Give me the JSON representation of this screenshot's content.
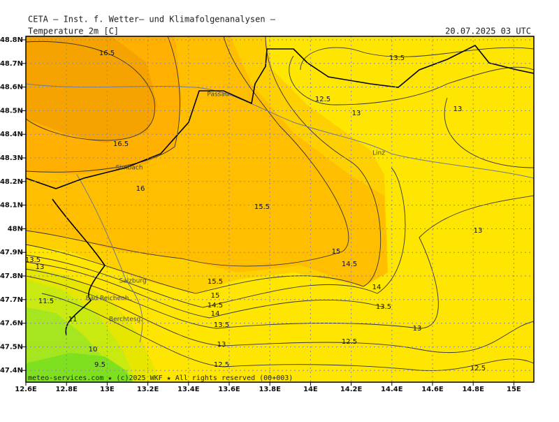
{
  "header": {
    "title": "CETA — Inst. f. Wetter— und Klimafolgenanalysen —",
    "variable": "Temperature_2m [C]",
    "valid_time": "20.07.2025 03 UTC",
    "footer": "meteo-services.com ★ (c)2025 WKF ★ All rights reserved (00+003)"
  },
  "map": {
    "lon_ticks": [
      {
        "value": 12.6,
        "label": "12.6E"
      },
      {
        "value": 12.8,
        "label": "12.8E"
      },
      {
        "value": 13,
        "label": "13E"
      },
      {
        "value": 13.2,
        "label": "13.2E"
      },
      {
        "value": 13.4,
        "label": "13.4E"
      },
      {
        "value": 13.6,
        "label": "13.6E"
      },
      {
        "value": 13.8,
        "label": "13.8E"
      },
      {
        "value": 14,
        "label": "14E"
      },
      {
        "value": 14.2,
        "label": "14.2E"
      },
      {
        "value": 14.4,
        "label": "14.4E"
      },
      {
        "value": 14.6,
        "label": "14.6E"
      },
      {
        "value": 14.8,
        "label": "14.8E"
      },
      {
        "value": 15,
        "label": "15E"
      }
    ],
    "lat_ticks": [
      {
        "value": 48.8,
        "label": "48.8N"
      },
      {
        "value": 48.7,
        "label": "48.7N"
      },
      {
        "value": 48.6,
        "label": "48.6N"
      },
      {
        "value": 48.5,
        "label": "48.5N"
      },
      {
        "value": 48.4,
        "label": "48.4N"
      },
      {
        "value": 48.3,
        "label": "48.3N"
      },
      {
        "value": 48.2,
        "label": "48.2N"
      },
      {
        "value": 48.1,
        "label": "48.1N"
      },
      {
        "value": 48,
        "label": "48N"
      },
      {
        "value": 47.9,
        "label": "47.9N"
      },
      {
        "value": 47.8,
        "label": "47.8N"
      },
      {
        "value": 47.7,
        "label": "47.7N"
      },
      {
        "value": 47.6,
        "label": "47.6N"
      },
      {
        "value": 47.5,
        "label": "47.5N"
      },
      {
        "value": 47.4,
        "label": "47.4N"
      }
    ],
    "contour_labels": [
      "16.5",
      "16.5",
      "16",
      "15.5",
      "15",
      "14.5",
      "14",
      "13.5",
      "13",
      "12.5",
      "12.5",
      "13",
      "13.5",
      "13",
      "13",
      "12.5",
      "13.5",
      "13",
      "11.5",
      "11",
      "10",
      "9.5",
      "15.5",
      "15",
      "14.5",
      "14",
      "13.5",
      "13",
      "12.5"
    ],
    "places": [
      "Passau",
      "Linz",
      "Simbach",
      "Salzburg",
      "Bad Reichenh.",
      "Berchtesg."
    ]
  }
}
